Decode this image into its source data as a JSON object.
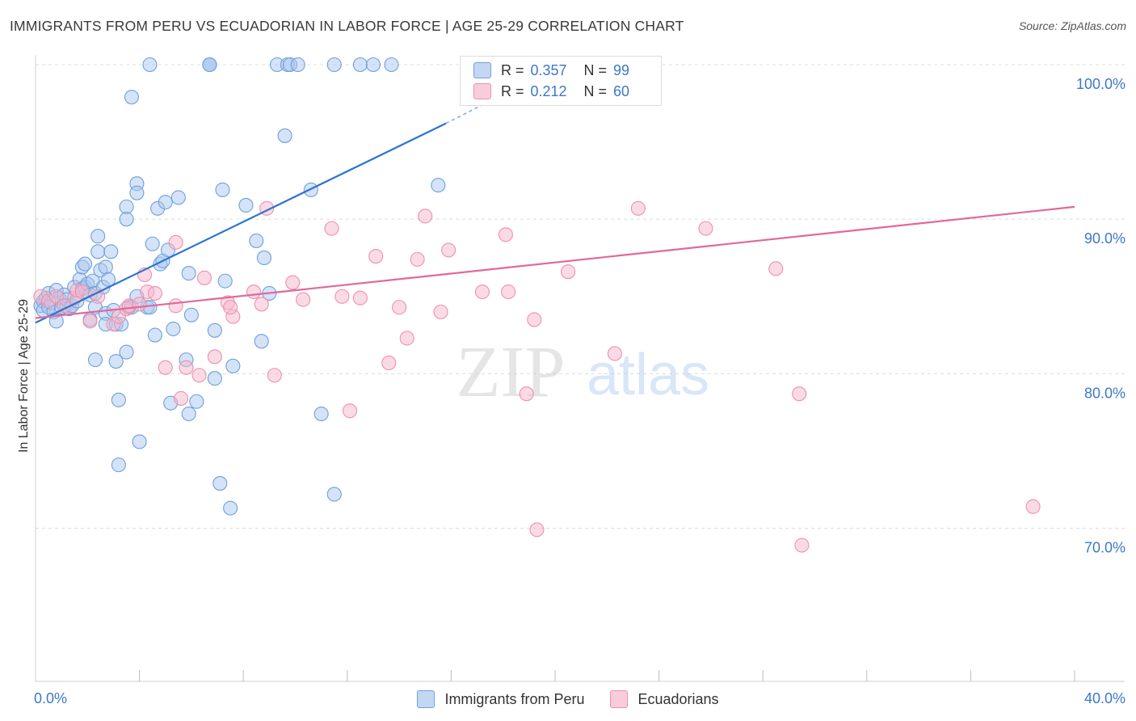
{
  "title": "IMMIGRANTS FROM PERU VS ECUADORIAN IN LABOR FORCE | AGE 25-29 CORRELATION CHART",
  "source": "Source: ZipAtlas.com",
  "watermark": {
    "zip": "ZIP",
    "atlas": "atlas"
  },
  "legend": {
    "r_label": "R =",
    "n_label": "N =",
    "rows": [
      {
        "r": "0.357",
        "n": "99",
        "color": "#a9c8ef"
      },
      {
        "r": "0.212",
        "n": "60",
        "color": "#f6b8cc"
      }
    ]
  },
  "bottom_legend": [
    "Immigrants from Peru",
    "Ecuadorians"
  ],
  "chart_data": {
    "type": "scatter",
    "title": "IMMIGRANTS FROM PERU VS ECUADORIAN IN LABOR FORCE | AGE 25-29 CORRELATION CHART",
    "xlabel": "",
    "ylabel": "In Labor Force | Age 25-29",
    "xlim": [
      0,
      40
    ],
    "ylim": [
      60,
      101.5
    ],
    "x_tick_labels": [
      "0.0%",
      "40.0%"
    ],
    "y_ticks": [
      70,
      80,
      90,
      100
    ],
    "y_tick_labels": [
      "70.0%",
      "80.0%",
      "90.0%",
      "100.0%"
    ],
    "series": [
      {
        "name": "Immigrants from Peru",
        "color": "#6fa0dd",
        "fill": "#a9c8ef",
        "line_color": "#2d73cf",
        "trend": {
          "x": [
            0,
            15.8
          ],
          "y": [
            83.3,
            96.2
          ],
          "dash_x": [
            15.8,
            18.5
          ],
          "dash_y": [
            96.2,
            98.5
          ]
        },
        "points": [
          [
            0.2,
            84.4
          ],
          [
            0.3,
            84.7
          ],
          [
            0.3,
            84.1
          ],
          [
            0.4,
            84.9
          ],
          [
            0.5,
            84.3
          ],
          [
            0.5,
            85.2
          ],
          [
            0.6,
            84.6
          ],
          [
            0.7,
            84.0
          ],
          [
            0.8,
            85.4
          ],
          [
            0.8,
            83.4
          ],
          [
            0.9,
            84.9
          ],
          [
            1.0,
            84.3
          ],
          [
            1.1,
            85.1
          ],
          [
            1.2,
            84.4
          ],
          [
            1.2,
            84.8
          ],
          [
            1.3,
            84.2
          ],
          [
            1.4,
            84.4
          ],
          [
            1.5,
            85.6
          ],
          [
            1.6,
            84.7
          ],
          [
            1.7,
            86.1
          ],
          [
            1.8,
            86.9
          ],
          [
            1.8,
            85.5
          ],
          [
            1.9,
            87.1
          ],
          [
            1.9,
            85.6
          ],
          [
            2.0,
            85.8
          ],
          [
            2.1,
            85.1
          ],
          [
            2.1,
            83.5
          ],
          [
            2.2,
            86.0
          ],
          [
            2.3,
            80.9
          ],
          [
            2.3,
            84.3
          ],
          [
            2.3,
            85.2
          ],
          [
            2.4,
            88.9
          ],
          [
            2.4,
            87.9
          ],
          [
            2.5,
            86.7
          ],
          [
            2.6,
            85.6
          ],
          [
            2.7,
            86.9
          ],
          [
            2.7,
            83.9
          ],
          [
            2.7,
            83.2
          ],
          [
            2.8,
            86.1
          ],
          [
            2.9,
            87.9
          ],
          [
            3.0,
            84.1
          ],
          [
            3.1,
            80.8
          ],
          [
            3.1,
            83.2
          ],
          [
            3.2,
            78.3
          ],
          [
            3.2,
            74.1
          ],
          [
            3.3,
            83.2
          ],
          [
            3.5,
            90.8
          ],
          [
            3.5,
            90.0
          ],
          [
            3.5,
            81.4
          ],
          [
            3.6,
            84.3
          ],
          [
            3.7,
            97.9
          ],
          [
            3.7,
            84.3
          ],
          [
            3.9,
            85.0
          ],
          [
            3.9,
            92.3
          ],
          [
            3.9,
            91.7
          ],
          [
            4.0,
            75.6
          ],
          [
            4.3,
            84.3
          ],
          [
            4.4,
            84.3
          ],
          [
            4.4,
            100
          ],
          [
            4.5,
            88.4
          ],
          [
            4.6,
            82.5
          ],
          [
            4.7,
            90.7
          ],
          [
            4.8,
            87.1
          ],
          [
            4.9,
            87.3
          ],
          [
            5.0,
            91.1
          ],
          [
            5.1,
            88.0
          ],
          [
            5.2,
            78.1
          ],
          [
            5.3,
            82.9
          ],
          [
            5.5,
            91.4
          ],
          [
            5.8,
            80.9
          ],
          [
            5.9,
            77.4
          ],
          [
            5.9,
            86.5
          ],
          [
            6.0,
            83.8
          ],
          [
            6.2,
            78.2
          ],
          [
            6.7,
            100
          ],
          [
            6.7,
            100
          ],
          [
            6.7,
            100
          ],
          [
            6.9,
            79.7
          ],
          [
            6.9,
            82.8
          ],
          [
            7.1,
            72.9
          ],
          [
            7.2,
            91.9
          ],
          [
            7.3,
            86.0
          ],
          [
            7.5,
            71.3
          ],
          [
            7.6,
            80.5
          ],
          [
            8.1,
            90.9
          ],
          [
            8.5,
            88.6
          ],
          [
            8.7,
            82.1
          ],
          [
            8.8,
            87.5
          ],
          [
            9.0,
            85.2
          ],
          [
            9.3,
            100
          ],
          [
            9.6,
            95.4
          ],
          [
            9.7,
            100
          ],
          [
            9.8,
            100
          ],
          [
            10.1,
            100
          ],
          [
            10.6,
            91.9
          ],
          [
            11.5,
            72.2
          ],
          [
            11.0,
            77.4
          ],
          [
            11.5,
            100
          ],
          [
            12.5,
            100
          ],
          [
            13.0,
            100
          ],
          [
            13.7,
            100
          ],
          [
            15.5,
            92.2
          ]
        ]
      },
      {
        "name": "Ecuadorians",
        "color": "#ef8fae",
        "fill": "#f6b8cc",
        "line_color": "#e0699a",
        "trend": {
          "x": [
            0,
            40
          ],
          "y": [
            83.6,
            90.8
          ]
        },
        "points": [
          [
            0.2,
            85.0
          ],
          [
            0.5,
            84.7
          ],
          [
            0.8,
            85.0
          ],
          [
            1.1,
            84.4
          ],
          [
            1.5,
            84.9
          ],
          [
            1.6,
            85.4
          ],
          [
            1.8,
            85.3
          ],
          [
            2.1,
            83.4
          ],
          [
            2.4,
            85.0
          ],
          [
            3.0,
            83.2
          ],
          [
            3.2,
            83.7
          ],
          [
            3.5,
            84.2
          ],
          [
            3.6,
            84.4
          ],
          [
            4.0,
            84.5
          ],
          [
            4.2,
            86.4
          ],
          [
            4.3,
            85.3
          ],
          [
            4.6,
            85.2
          ],
          [
            5.0,
            80.4
          ],
          [
            5.4,
            84.4
          ],
          [
            5.4,
            88.5
          ],
          [
            5.6,
            78.4
          ],
          [
            5.8,
            80.4
          ],
          [
            6.3,
            79.9
          ],
          [
            6.5,
            86.2
          ],
          [
            6.9,
            81.1
          ],
          [
            7.4,
            84.6
          ],
          [
            7.6,
            83.7
          ],
          [
            8.4,
            85.3
          ],
          [
            8.7,
            84.5
          ],
          [
            7.5,
            84.3
          ],
          [
            8.9,
            90.7
          ],
          [
            9.2,
            79.9
          ],
          [
            9.9,
            85.9
          ],
          [
            10.3,
            84.8
          ],
          [
            11.4,
            89.4
          ],
          [
            11.8,
            85.0
          ],
          [
            12.1,
            77.6
          ],
          [
            12.5,
            84.9
          ],
          [
            13.1,
            87.6
          ],
          [
            13.6,
            80.7
          ],
          [
            14.0,
            84.3
          ],
          [
            14.3,
            82.3
          ],
          [
            14.7,
            87.4
          ],
          [
            15.0,
            90.2
          ],
          [
            15.6,
            84.0
          ],
          [
            15.9,
            88.0
          ],
          [
            17.2,
            85.3
          ],
          [
            18.1,
            89.0
          ],
          [
            18.2,
            85.3
          ],
          [
            18.9,
            78.7
          ],
          [
            19.2,
            83.5
          ],
          [
            19.3,
            69.9
          ],
          [
            20.5,
            86.6
          ],
          [
            22.3,
            81.3
          ],
          [
            23.2,
            90.7
          ],
          [
            25.8,
            89.4
          ],
          [
            28.5,
            86.8
          ],
          [
            29.4,
            78.7
          ],
          [
            29.5,
            68.9
          ],
          [
            38.4,
            71.4
          ]
        ]
      }
    ]
  }
}
